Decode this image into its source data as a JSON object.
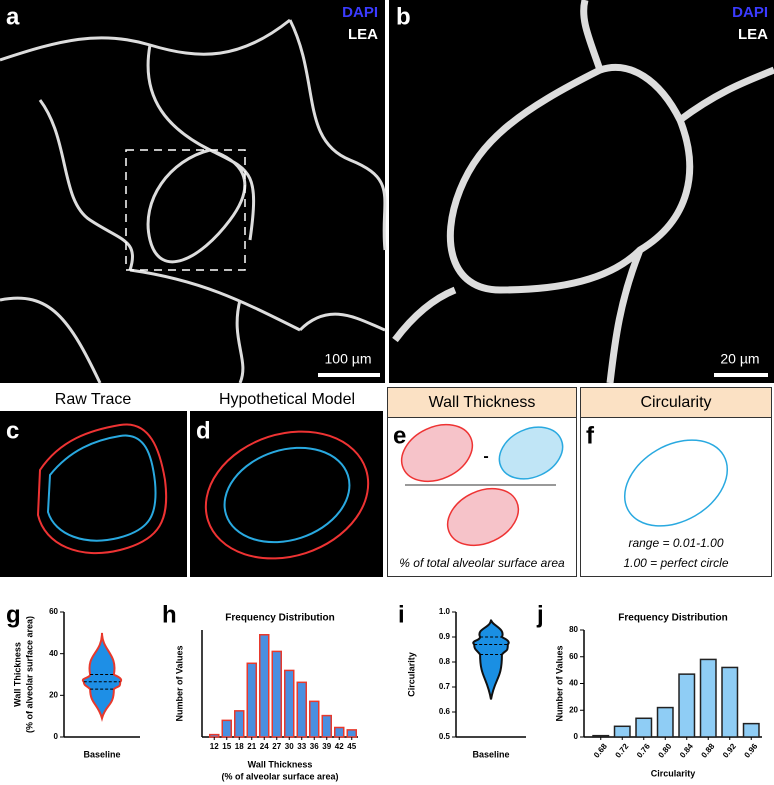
{
  "panels": {
    "a": {
      "label": "a",
      "stain1": "DAPI",
      "stain2": "LEA",
      "scale": "100 µm"
    },
    "b": {
      "label": "b",
      "stain1": "DAPI",
      "stain2": "LEA",
      "scale": "20 µm"
    },
    "c": {
      "label": "c",
      "title": "Raw Trace"
    },
    "d": {
      "label": "d",
      "title": "Hypothetical Model"
    },
    "e": {
      "label": "e",
      "title": "Wall Thickness",
      "operator": "-",
      "caption": "% of total alveolar surface area"
    },
    "f": {
      "label": "f",
      "title": "Circularity",
      "caption1": "range = 0.01-1.00",
      "caption2": "1.00 = perfect circle"
    },
    "g": {
      "label": "g"
    },
    "h": {
      "label": "h"
    },
    "i": {
      "label": "i"
    },
    "j": {
      "label": "j"
    }
  },
  "chart_data": [
    {
      "type": "violin",
      "ylabel": [
        "Wall Thickness",
        "(% of alveolar surface area)"
      ],
      "categories": [
        "Baseline"
      ],
      "min": 9,
      "q1": 23,
      "median": 26.5,
      "q3": 30,
      "max": 50,
      "color": "#1e8fe6",
      "edge_color": "#e8392c",
      "ylim": [
        0,
        60
      ],
      "yticks": [
        0,
        20,
        40,
        60
      ]
    },
    {
      "type": "bar",
      "title": "Frequency Distribution",
      "ylabel": "Number of Values",
      "xlabel": [
        "Wall Thickness",
        "(% of alveolar surface area)"
      ],
      "categories": [
        "12",
        "15",
        "18",
        "21",
        "24",
        "27",
        "30",
        "33",
        "36",
        "39",
        "42",
        "45"
      ],
      "values": [
        1,
        7,
        11,
        31,
        43,
        36,
        28,
        23,
        15,
        9,
        4,
        3
      ],
      "color": "#4a8fe0",
      "edge_color": "#e8392c",
      "ylim": [
        0,
        45
      ]
    },
    {
      "type": "violin",
      "ylabel": [
        "Circularity"
      ],
      "categories": [
        "Baseline"
      ],
      "min": 0.65,
      "q1": 0.83,
      "median": 0.87,
      "q3": 0.9,
      "max": 0.97,
      "color": "#1a8fe3",
      "edge_color": "#111111",
      "ylim": [
        0.5,
        1.0
      ],
      "yticks": [
        0.5,
        0.6,
        0.7,
        0.8,
        0.9,
        {
          "value": 1.0,
          "label": "1.0"
        }
      ]
    },
    {
      "type": "bar",
      "title": "Frequency Distribution",
      "ylabel": "Number of Values",
      "xlabel": [
        "Circularity"
      ],
      "categories": [
        "0.68",
        "0.72",
        "0.76",
        "0.80",
        "0.84",
        "0.88",
        "0.92",
        "0.96"
      ],
      "values": [
        1,
        8,
        14,
        22,
        47,
        58,
        52,
        10
      ],
      "color": "#8fcdf5",
      "edge_color": "#222222",
      "ylim": [
        0,
        80
      ],
      "yticks": [
        0,
        20,
        40,
        60,
        80
      ]
    }
  ]
}
